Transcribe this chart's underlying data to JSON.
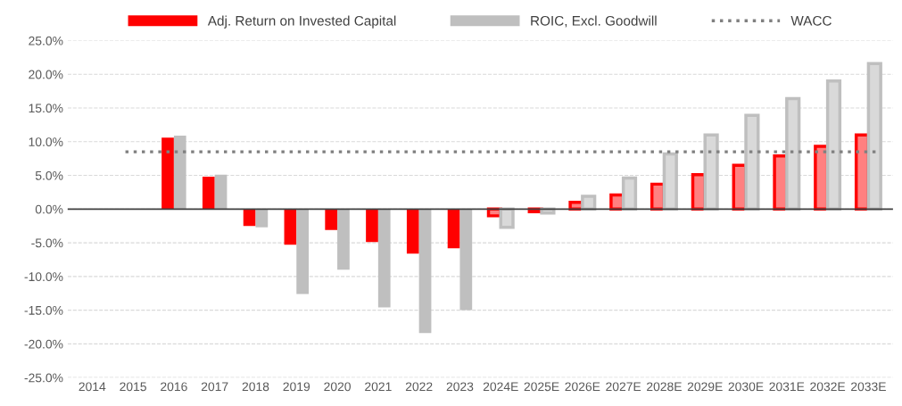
{
  "chart_data": {
    "type": "bar",
    "categories": [
      "2014",
      "2015",
      "2016",
      "2017",
      "2018",
      "2019",
      "2020",
      "2021",
      "2022",
      "2023",
      "2024E",
      "2025E",
      "2026E",
      "2027E",
      "2028E",
      "2029E",
      "2030E",
      "2031E",
      "2032E",
      "2033E"
    ],
    "series": [
      {
        "name": "Adj. Return on Invested Capital",
        "color": "#ff0000",
        "colors": [
          "#ff0000",
          "#ff0000",
          "#ff0000",
          "#ff0000",
          "#ff0000",
          "#ff0000",
          "#ff0000",
          "#ff0000",
          "#ff0000",
          "#ff0000",
          "#ff8080",
          "#ff8080",
          "#ff8080",
          "#ff8080",
          "#ff8080",
          "#ff8080",
          "#ff8080",
          "#ff8080",
          "#ff8080",
          "#ff8080"
        ],
        "values": [
          null,
          null,
          10.6,
          4.8,
          -2.5,
          -5.3,
          -3.1,
          -4.9,
          -6.6,
          -5.8,
          -1.0,
          -0.4,
          1.0,
          2.1,
          3.7,
          5.1,
          6.5,
          7.9,
          9.3,
          11.0
        ]
      },
      {
        "name": "ROIC, Excl. Goodwill",
        "color": "#bfbfbf",
        "colors": [
          "#bfbfbf",
          "#bfbfbf",
          "#bfbfbf",
          "#bfbfbf",
          "#bfbfbf",
          "#bfbfbf",
          "#bfbfbf",
          "#bfbfbf",
          "#bfbfbf",
          "#bfbfbf",
          "#d9d9d9",
          "#d9d9d9",
          "#d9d9d9",
          "#d9d9d9",
          "#d9d9d9",
          "#d9d9d9",
          "#d9d9d9",
          "#d9d9d9",
          "#d9d9d9",
          "#d9d9d9"
        ],
        "values": [
          null,
          null,
          10.9,
          5.1,
          -2.7,
          -12.6,
          -9.0,
          -14.6,
          -18.4,
          -15.0,
          -2.7,
          -0.6,
          1.9,
          4.6,
          8.2,
          11.0,
          13.9,
          16.4,
          19.0,
          21.6
        ]
      }
    ],
    "ref_lines": [
      {
        "axis": "y",
        "value": 8.5,
        "label": "WACC",
        "color": "#808080",
        "line_style": "dotted"
      }
    ],
    "ylim": [
      -25,
      25
    ],
    "yticks": [
      {
        "value": -25,
        "label": "-25.0%"
      },
      {
        "value": -20,
        "label": "-20.0%"
      },
      {
        "value": -15,
        "label": "-15.0%"
      },
      {
        "value": -10,
        "label": "-10.0%"
      },
      {
        "value": -5,
        "label": "-5.0%"
      },
      {
        "value": 0,
        "label": "0.0%"
      },
      {
        "value": 5,
        "label": "5.0%"
      },
      {
        "value": 10,
        "label": "10.0%"
      },
      {
        "value": 15,
        "label": "15.0%"
      },
      {
        "value": 20,
        "label": "20.0%"
      },
      {
        "value": 25,
        "label": "25.0%"
      }
    ],
    "grid": "y",
    "legend": "top"
  }
}
